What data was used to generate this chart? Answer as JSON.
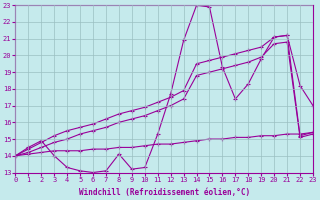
{
  "background_color": "#c5eaec",
  "grid_color": "#9bbfc1",
  "line_color": "#990099",
  "xlabel": "Windchill (Refroidissement éolien,°C)",
  "xmin": 0,
  "xmax": 23,
  "ymin": 13,
  "ymax": 23,
  "series": [
    {
      "x": [
        0,
        1,
        2,
        3,
        4,
        5,
        6,
        7,
        8,
        9,
        10,
        11,
        12,
        13,
        14,
        15,
        16,
        17,
        18,
        19,
        20,
        21,
        22,
        23
      ],
      "y": [
        14.0,
        14.5,
        14.9,
        14.0,
        13.3,
        13.1,
        13.0,
        13.1,
        14.1,
        13.2,
        13.3,
        15.3,
        17.7,
        20.9,
        23.0,
        22.9,
        19.3,
        17.4,
        18.3,
        19.8,
        21.1,
        21.2,
        18.2,
        17.0
      ]
    },
    {
      "x": [
        0,
        1,
        2,
        3,
        4,
        5,
        6,
        7,
        8,
        9,
        10,
        11,
        12,
        13,
        14,
        15,
        16,
        17,
        18,
        19,
        20,
        21,
        22,
        23
      ],
      "y": [
        14.0,
        14.4,
        14.8,
        15.2,
        15.5,
        15.7,
        15.9,
        16.2,
        16.5,
        16.7,
        16.9,
        17.2,
        17.5,
        17.9,
        19.5,
        19.7,
        19.9,
        20.1,
        20.3,
        20.5,
        21.1,
        21.2,
        15.2,
        15.4
      ]
    },
    {
      "x": [
        0,
        1,
        2,
        3,
        4,
        5,
        6,
        7,
        8,
        9,
        10,
        11,
        12,
        13,
        14,
        15,
        16,
        17,
        18,
        19,
        20,
        21,
        22,
        23
      ],
      "y": [
        14.0,
        14.2,
        14.5,
        14.8,
        15.0,
        15.3,
        15.5,
        15.7,
        16.0,
        16.2,
        16.4,
        16.7,
        17.0,
        17.4,
        18.8,
        19.0,
        19.2,
        19.4,
        19.6,
        19.9,
        20.7,
        20.8,
        15.1,
        15.3
      ]
    },
    {
      "x": [
        0,
        1,
        2,
        3,
        4,
        5,
        6,
        7,
        8,
        9,
        10,
        11,
        12,
        13,
        14,
        15,
        16,
        17,
        18,
        19,
        20,
        21,
        22,
        23
      ],
      "y": [
        14.0,
        14.1,
        14.2,
        14.3,
        14.3,
        14.3,
        14.4,
        14.4,
        14.5,
        14.5,
        14.6,
        14.7,
        14.7,
        14.8,
        14.9,
        15.0,
        15.0,
        15.1,
        15.1,
        15.2,
        15.2,
        15.3,
        15.3,
        15.4
      ]
    }
  ]
}
